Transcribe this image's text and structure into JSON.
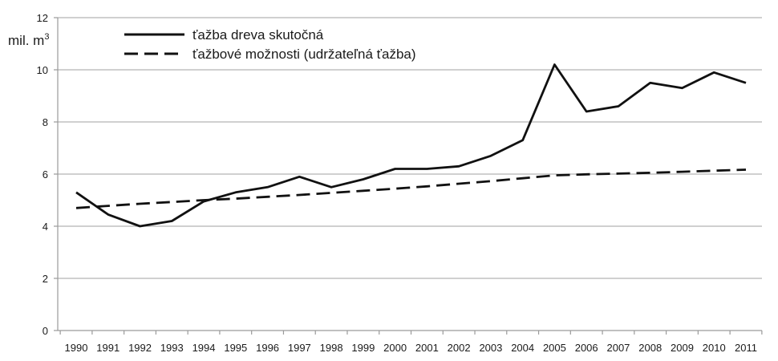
{
  "chart_data": {
    "type": "line",
    "title": "",
    "ylabel": "mil. m",
    "ylabel_superscript": "3",
    "xlabel": "",
    "ylim": [
      0,
      12
    ],
    "yticks": [
      "0",
      "2",
      "4",
      "6",
      "8",
      "10",
      "12"
    ],
    "grid": true,
    "legend_position": "top-left",
    "categories": [
      "1990",
      "1991",
      "1992",
      "1993",
      "1994",
      "1995",
      "1996",
      "1997",
      "1998",
      "1999",
      "2000",
      "2001",
      "2002",
      "2003",
      "2004",
      "2005",
      "2006",
      "2007",
      "2008",
      "2009",
      "2010",
      "2011"
    ],
    "series": [
      {
        "name": "ťažba dreva skutočná",
        "style": "solid",
        "color": "#111111",
        "values": [
          5.3,
          4.45,
          4.0,
          4.2,
          4.95,
          5.3,
          5.5,
          5.9,
          5.5,
          5.8,
          6.2,
          6.2,
          6.3,
          6.7,
          7.3,
          10.2,
          8.4,
          8.6,
          9.5,
          9.3,
          9.9,
          9.5
        ]
      },
      {
        "name": "ťažbové možnosti (udržateľná ťažba)",
        "style": "dashed",
        "color": "#111111",
        "values": [
          4.7,
          4.78,
          4.86,
          4.93,
          5.0,
          5.06,
          5.13,
          5.2,
          5.28,
          5.36,
          5.44,
          5.53,
          5.63,
          5.73,
          5.84,
          5.95,
          5.99,
          6.02,
          6.05,
          6.09,
          6.13,
          6.17
        ]
      }
    ]
  }
}
